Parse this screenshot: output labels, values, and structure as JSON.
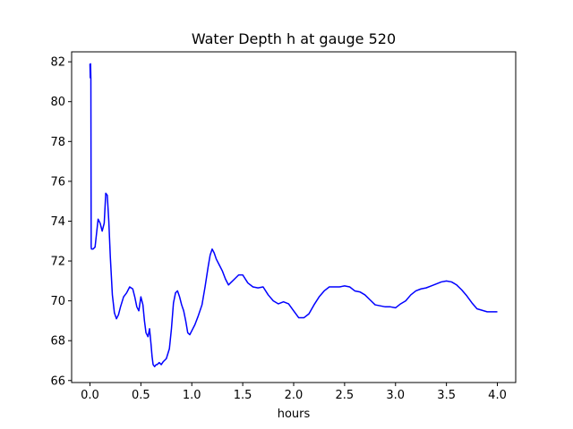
{
  "chart_data": {
    "type": "line",
    "title": "Water Depth h at gauge 520",
    "xlabel": "hours",
    "ylabel": "",
    "xlim": [
      -0.18,
      4.18
    ],
    "ylim": [
      65.9,
      82.5
    ],
    "xticks": [
      0.0,
      0.5,
      1.0,
      1.5,
      2.0,
      2.5,
      3.0,
      3.5,
      4.0
    ],
    "xtick_labels": [
      "0.0",
      "0.5",
      "1.0",
      "1.5",
      "2.0",
      "2.5",
      "3.0",
      "3.5",
      "4.0"
    ],
    "yticks": [
      66,
      68,
      70,
      72,
      74,
      76,
      78,
      80,
      82
    ],
    "ytick_labels": [
      "66",
      "68",
      "70",
      "72",
      "74",
      "76",
      "78",
      "80",
      "82"
    ],
    "grid": false,
    "line_color": "#0000ff",
    "series": [
      {
        "color": "#0000ff",
        "x": [
          0.0,
          0.003,
          0.006,
          0.009,
          0.012,
          0.015,
          0.03,
          0.05,
          0.065,
          0.08,
          0.1,
          0.12,
          0.14,
          0.155,
          0.17,
          0.185,
          0.2,
          0.22,
          0.24,
          0.26,
          0.28,
          0.3,
          0.33,
          0.36,
          0.39,
          0.42,
          0.44,
          0.46,
          0.48,
          0.5,
          0.52,
          0.535,
          0.55,
          0.57,
          0.585,
          0.6,
          0.61,
          0.62,
          0.635,
          0.65,
          0.66,
          0.68,
          0.7,
          0.72,
          0.75,
          0.78,
          0.8,
          0.82,
          0.84,
          0.86,
          0.88,
          0.9,
          0.92,
          0.94,
          0.96,
          0.98,
          1.0,
          1.03,
          1.06,
          1.1,
          1.13,
          1.16,
          1.18,
          1.2,
          1.22,
          1.24,
          1.27,
          1.3,
          1.33,
          1.36,
          1.38,
          1.42,
          1.46,
          1.5,
          1.55,
          1.6,
          1.65,
          1.7,
          1.75,
          1.8,
          1.85,
          1.9,
          1.95,
          2.0,
          2.05,
          2.1,
          2.15,
          2.2,
          2.25,
          2.3,
          2.35,
          2.4,
          2.45,
          2.5,
          2.55,
          2.6,
          2.65,
          2.7,
          2.75,
          2.8,
          2.9,
          2.95,
          3.0,
          3.05,
          3.1,
          3.15,
          3.2,
          3.25,
          3.3,
          3.35,
          3.4,
          3.45,
          3.5,
          3.55,
          3.6,
          3.65,
          3.7,
          3.75,
          3.8,
          3.9,
          4.0
        ],
        "y": [
          81.9,
          81.2,
          81.9,
          81.2,
          72.7,
          72.6,
          72.6,
          72.7,
          73.4,
          74.1,
          73.9,
          73.5,
          73.9,
          75.4,
          75.3,
          74.0,
          72.2,
          70.3,
          69.4,
          69.1,
          69.3,
          69.7,
          70.2,
          70.4,
          70.7,
          70.6,
          70.2,
          69.7,
          69.5,
          70.2,
          69.8,
          69.0,
          68.4,
          68.2,
          68.6,
          67.8,
          67.2,
          66.8,
          66.7,
          66.8,
          66.8,
          66.9,
          66.8,
          66.95,
          67.1,
          67.6,
          68.6,
          69.9,
          70.4,
          70.5,
          70.2,
          69.8,
          69.5,
          69.0,
          68.4,
          68.3,
          68.5,
          68.8,
          69.2,
          69.8,
          70.7,
          71.7,
          72.3,
          72.6,
          72.4,
          72.1,
          71.8,
          71.5,
          71.1,
          70.8,
          70.9,
          71.1,
          71.3,
          71.3,
          70.9,
          70.7,
          70.65,
          70.7,
          70.3,
          70.0,
          69.85,
          69.95,
          69.85,
          69.5,
          69.15,
          69.15,
          69.35,
          69.8,
          70.2,
          70.5,
          70.7,
          70.7,
          70.7,
          70.75,
          70.7,
          70.5,
          70.45,
          70.3,
          70.05,
          69.8,
          69.7,
          69.7,
          69.65,
          69.85,
          70.0,
          70.3,
          70.5,
          70.6,
          70.65,
          70.75,
          70.85,
          70.95,
          71.0,
          70.95,
          70.8,
          70.55,
          70.25,
          69.9,
          69.6,
          69.45,
          69.45
        ]
      }
    ]
  }
}
